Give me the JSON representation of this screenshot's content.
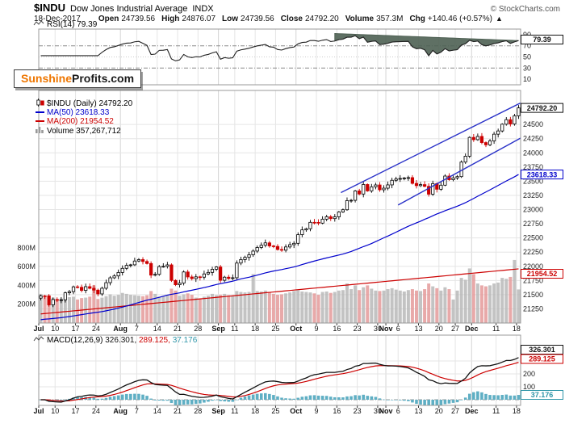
{
  "header": {
    "symbol": "$INDU",
    "title": "Dow Jones Industrial Average",
    "exchange": "INDX",
    "copyright": "© StockCharts.com",
    "date": "18-Dec-2017",
    "fields": [
      {
        "label": "Open",
        "value": "24739.56"
      },
      {
        "label": "High",
        "value": "24876.07"
      },
      {
        "label": "Low",
        "value": "24739.56"
      },
      {
        "label": "Close",
        "value": "24792.20"
      },
      {
        "label": "Volume",
        "value": "357.3M"
      },
      {
        "label": "Chg",
        "value": "+140.46 (+0.57%)"
      }
    ],
    "direction_arrow": "▲"
  },
  "watermark": {
    "part1": "Sunshine",
    "part2": "Profits.com"
  },
  "rsi_panel": {
    "label": "RSI(14) 79.39",
    "last_value": "79.39",
    "axis": [
      90,
      70,
      50,
      30,
      10
    ]
  },
  "main_panel": {
    "legend": {
      "symbol": "$INDU (Daily) 24792.20",
      "ma50": "MA(50) 23618.33",
      "ma200": "MA(200) 21954.52",
      "volume": "Volume 357,267,712"
    },
    "price_axis": [
      24500,
      24250,
      24000,
      23750,
      23500,
      23250,
      23000,
      22750,
      22500,
      22250,
      22000,
      21750,
      21500,
      21250
    ],
    "volume_axis": [
      [
        800,
        "800M"
      ],
      [
        600,
        "600M"
      ],
      [
        400,
        "400M"
      ],
      [
        200,
        "200M"
      ]
    ],
    "boxes": {
      "close": "24792.20",
      "ma50": "23618.33",
      "ma200": "21954.52"
    }
  },
  "macd_panel": {
    "label": "MACD(12,26,9)",
    "macd": "326.301",
    "signal": "289.125",
    "hist": "37.176",
    "axis": [
      300,
      200,
      100
    ]
  },
  "colors": {
    "up_candle": "#000000",
    "down_candle": "#cc0000",
    "ma50": "#0000cc",
    "ma200": "#cc0000",
    "trend": "#2a32c8",
    "vol_up": "#b9b9b9",
    "vol_down": "#e49a9a",
    "rsi_line": "#222222",
    "rsi_fill": "#4e6053",
    "macd": "#111111",
    "signal": "#cc0000",
    "histogram": "#5fafc4",
    "hist_text": "#2e95a8",
    "grid": "#e5e5e5",
    "month_grid": "#d4d4d4",
    "border": "#999999",
    "axis_text": "#222222",
    "orange": "#ee7600"
  },
  "chart_data": {
    "type": "candlestick",
    "title": "$INDU Dow Jones Industrial Average (Daily), Jul-Dec 2017",
    "panels": [
      "RSI(14)",
      "price+volume+MA(50)+MA(200)",
      "MACD(12,26,9)"
    ],
    "price_range": [
      21000,
      25100
    ],
    "x_ticks": [
      [
        "Jul",
        0
      ],
      [
        "10",
        4
      ],
      [
        "17",
        9
      ],
      [
        "24",
        14
      ],
      [
        "Aug",
        20
      ],
      [
        "7",
        24
      ],
      [
        "14",
        29
      ],
      [
        "21",
        34
      ],
      [
        "28",
        39
      ],
      [
        "Sep",
        44
      ],
      [
        "11",
        48
      ],
      [
        "18",
        53
      ],
      [
        "25",
        58
      ],
      [
        "Oct",
        63
      ],
      [
        "9",
        68
      ],
      [
        "16",
        73
      ],
      [
        "23",
        78
      ],
      [
        "30",
        83
      ],
      [
        "Nov",
        85
      ],
      [
        "6",
        88
      ],
      [
        "13",
        93
      ],
      [
        "20",
        98
      ],
      [
        "27",
        102
      ],
      [
        "Dec",
        106
      ],
      [
        "11",
        112
      ],
      [
        "18",
        117
      ]
    ],
    "closes": [
      21479,
      21478,
      21320,
      21414,
      21409,
      21409,
      21532,
      21553,
      21638,
      21630,
      21575,
      21641,
      21612,
      21580,
      21513,
      21613,
      21711,
      21797,
      21830,
      21891,
      21964,
      22016,
      22026,
      22093,
      22118,
      22085,
      22049,
      21844,
      21858,
      21994,
      21999,
      22025,
      21751,
      21675,
      21704,
      21900,
      21812,
      21783,
      21814,
      21808,
      21865,
      21892,
      21948,
      21988,
      21753,
      21808,
      21785,
      21798,
      22057,
      22119,
      22158,
      22203,
      22268,
      22331,
      22371,
      22413,
      22359,
      22350,
      22296,
      22284,
      22341,
      22381,
      22405,
      22558,
      22642,
      22662,
      22775,
      22774,
      22761,
      22831,
      22873,
      22841,
      22872,
      22957,
      22997,
      23158,
      23163,
      23329,
      23274,
      23442,
      23329,
      23401,
      23434,
      23349,
      23377,
      23435,
      23516,
      23539,
      23548,
      23557,
      23563,
      23462,
      23422,
      23440,
      23409,
      23271,
      23458,
      23358,
      23430,
      23591,
      23526,
      23558,
      23581,
      23837,
      23941,
      24272,
      24232,
      24290,
      24181,
      24141,
      24211,
      24329,
      24386,
      24505,
      24585,
      24509,
      24652,
      24792.2
    ],
    "volumes_m": [
      310,
      285,
      295,
      270,
      255,
      260,
      290,
      275,
      280,
      250,
      265,
      270,
      280,
      400,
      255,
      270,
      285,
      305,
      290,
      300,
      320,
      310,
      300,
      295,
      290,
      285,
      295,
      340,
      310,
      280,
      285,
      300,
      365,
      345,
      290,
      305,
      315,
      300,
      270,
      255,
      280,
      290,
      310,
      295,
      300,
      310,
      295,
      290,
      340,
      330,
      325,
      330,
      520,
      340,
      335,
      345,
      330,
      310,
      300,
      305,
      315,
      325,
      340,
      350,
      335,
      330,
      325,
      315,
      300,
      330,
      335,
      320,
      330,
      345,
      350,
      420,
      360,
      400,
      350,
      380,
      400,
      365,
      345,
      340,
      345,
      360,
      370,
      355,
      345,
      335,
      350,
      360,
      345,
      340,
      360,
      420,
      390,
      370,
      345,
      380,
      360,
      250,
      345,
      480,
      460,
      580,
      520,
      420,
      400,
      390,
      400,
      420,
      430,
      480,
      470,
      490,
      670,
      357
    ],
    "ma50_pad": 21050,
    "ma200_start": 21160,
    "ma200_end": 21954.52,
    "last": {
      "close": 24792.2,
      "rsi": 79.39,
      "macd": 326.301,
      "signal": 289.125,
      "hist": 37.176,
      "ma50": 23618.33,
      "ma200": 21954.52
    },
    "trendlines_price": [
      {
        "from": [
          74,
          23300
        ],
        "to": [
          118,
          24880
        ]
      },
      {
        "from": [
          88,
          23080
        ],
        "to": [
          118,
          24260
        ]
      }
    ],
    "trendline_rsi": {
      "from": [
        72,
        92
      ],
      "to": [
        118,
        79
      ]
    }
  }
}
